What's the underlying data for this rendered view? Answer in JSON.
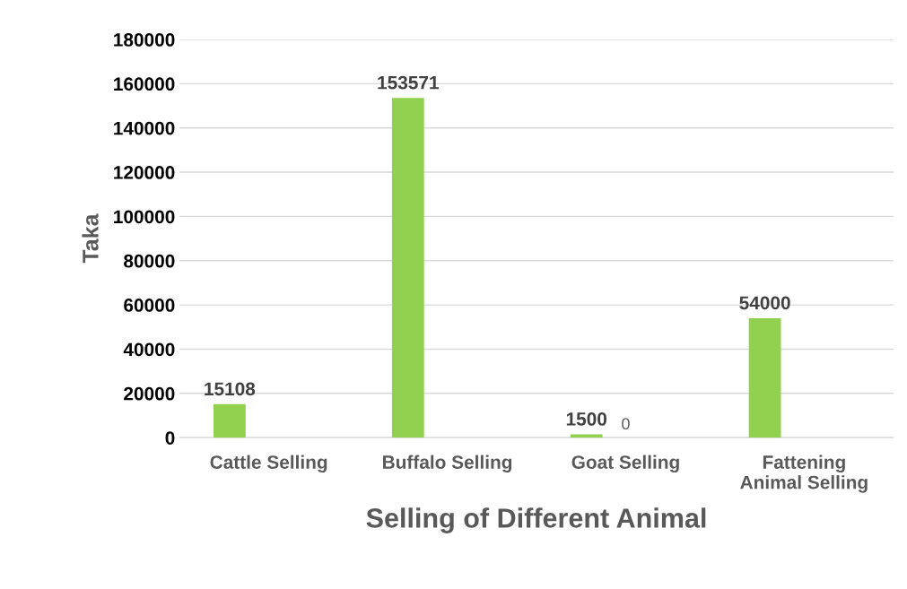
{
  "chart_data": {
    "type": "bar",
    "xlabel": "Selling of Different Animal",
    "ylabel": "Taka",
    "categories": [
      "Cattle Selling",
      "Buffalo Selling",
      "Goat Selling",
      "Fattening\nAnimal Selling"
    ],
    "series": [
      {
        "color": "#92d050",
        "values": [
          15108,
          153571,
          1500,
          54000
        ]
      },
      {
        "color": "#a5a5a5",
        "values": [
          null,
          null,
          0,
          null
        ]
      }
    ],
    "ylim": [
      0,
      180000
    ],
    "yticks": [
      0,
      20000,
      40000,
      60000,
      80000,
      100000,
      120000,
      140000,
      160000,
      180000
    ],
    "grid": "y",
    "data_labels": true
  }
}
